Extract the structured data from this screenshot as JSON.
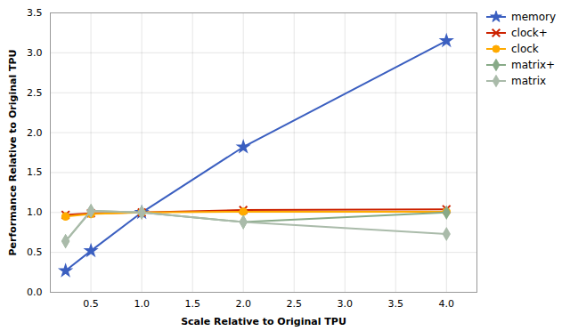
{
  "chart_data": {
    "type": "line",
    "x": [
      0.25,
      0.5,
      1.0,
      2.0,
      4.0
    ],
    "series": [
      {
        "name": "memory",
        "color": "#3B5FC0",
        "marker": "star",
        "values": [
          0.27,
          0.52,
          1.0,
          1.82,
          3.15
        ]
      },
      {
        "name": "clock+",
        "color": "#CC2200",
        "marker": "x",
        "values": [
          0.97,
          0.99,
          1.0,
          1.03,
          1.04
        ]
      },
      {
        "name": "clock",
        "color": "#FFAA00",
        "marker": "circle",
        "values": [
          0.95,
          0.98,
          1.0,
          1.01,
          1.01
        ]
      },
      {
        "name": "matrix+",
        "color": "#88AA88",
        "marker": "diamond",
        "values": [
          0.64,
          1.02,
          1.0,
          0.88,
          1.0
        ]
      },
      {
        "name": "matrix",
        "color": "#AABBAA",
        "marker": "diamond",
        "values": [
          0.64,
          1.02,
          1.0,
          0.88,
          0.73
        ]
      }
    ],
    "xlabel": "Scale Relative to Original TPU",
    "ylabel": "Performance Relative to Original TPU",
    "xlim": [
      0.1,
      4.3
    ],
    "ylim": [
      0.0,
      3.5
    ],
    "xticks": [
      0.5,
      {
        "value": 1.0,
        "label": "1.0"
      },
      1.5,
      {
        "value": 2.0,
        "label": "2.0"
      },
      2.5,
      {
        "value": 3.0,
        "label": "3.0"
      },
      3.5,
      {
        "value": 4.0,
        "label": "4.0"
      }
    ],
    "yticks": [
      {
        "value": 0.0,
        "label": "0.0"
      },
      0.5,
      {
        "value": 1.0,
        "label": "1.0"
      },
      1.5,
      {
        "value": 2.0,
        "label": "2.0"
      },
      2.5,
      {
        "value": 3.0,
        "label": "3.0"
      },
      3.5
    ],
    "grid": true,
    "legend": "upper right"
  }
}
